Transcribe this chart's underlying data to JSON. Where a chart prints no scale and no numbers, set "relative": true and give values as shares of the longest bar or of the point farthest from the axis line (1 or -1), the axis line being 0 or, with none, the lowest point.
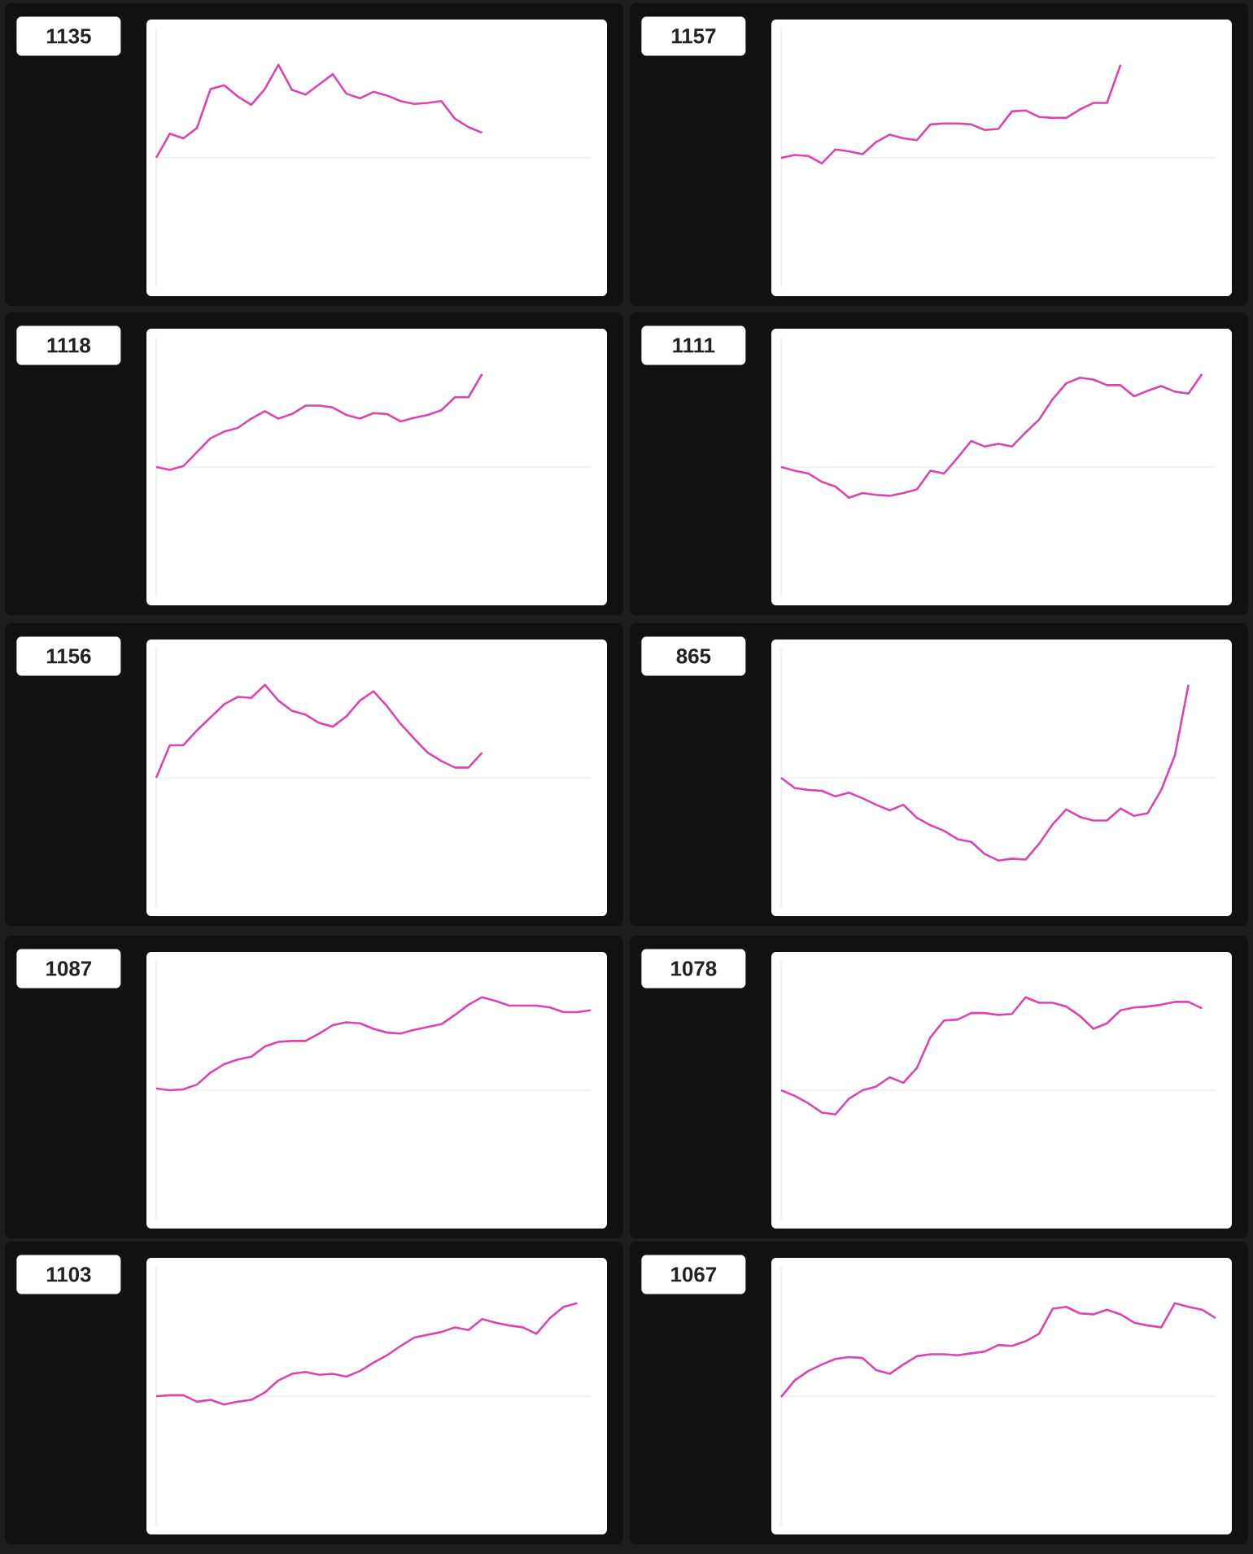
{
  "chart_data": [
    {
      "type": "line",
      "title": "1135",
      "relative": true,
      "color": "#d946b0",
      "categories": [
        null,
        null,
        null,
        null,
        null,
        null,
        null,
        null,
        null,
        null,
        null,
        null,
        null,
        null,
        null,
        null,
        null,
        null,
        null,
        null,
        null,
        null,
        null,
        null,
        null,
        null,
        null,
        null,
        null,
        null,
        null,
        null,
        null
      ],
      "values": [
        0,
        0.26,
        0.21,
        0.32,
        0.74,
        0.78,
        0.66,
        0.57,
        0.74,
        1,
        0.73,
        0.68,
        0.79,
        0.9,
        0.69,
        0.64,
        0.71,
        0.67,
        0.61,
        0.58,
        0.59,
        0.61,
        0.42,
        0.33,
        0.27,
        null,
        null,
        null,
        null,
        null,
        null,
        null,
        null
      ]
    },
    {
      "type": "line",
      "title": "1157",
      "relative": true,
      "color": "#d946b0",
      "categories": [
        null,
        null,
        null,
        null,
        null,
        null,
        null,
        null,
        null,
        null,
        null,
        null,
        null,
        null,
        null,
        null,
        null,
        null,
        null,
        null,
        null,
        null,
        null,
        null,
        null,
        null,
        null,
        null,
        null,
        null,
        null,
        null,
        null
      ],
      "values": [
        0,
        0.03,
        0.02,
        -0.06,
        0.09,
        0.07,
        0.04,
        0.17,
        0.25,
        0.21,
        0.19,
        0.36,
        0.37,
        0.37,
        0.36,
        0.3,
        0.31,
        0.5,
        0.51,
        0.44,
        0.43,
        0.43,
        0.52,
        0.59,
        0.59,
        1,
        null,
        null,
        null,
        null,
        null,
        null,
        null
      ]
    },
    {
      "type": "line",
      "title": "1118",
      "relative": true,
      "color": "#d946b0",
      "categories": [
        null,
        null,
        null,
        null,
        null,
        null,
        null,
        null,
        null,
        null,
        null,
        null,
        null,
        null,
        null,
        null,
        null,
        null,
        null,
        null,
        null,
        null,
        null,
        null,
        null,
        null,
        null,
        null,
        null,
        null,
        null,
        null,
        null
      ],
      "values": [
        0,
        -0.03,
        0.01,
        0.16,
        0.31,
        0.38,
        0.42,
        0.52,
        0.6,
        0.52,
        0.57,
        0.66,
        0.66,
        0.64,
        0.56,
        0.52,
        0.58,
        0.57,
        0.49,
        0.53,
        0.56,
        0.61,
        0.75,
        0.75,
        1,
        null,
        null,
        null,
        null,
        null,
        null,
        null,
        null
      ]
    },
    {
      "type": "line",
      "title": "1111",
      "relative": true,
      "color": "#d946b0",
      "categories": [
        null,
        null,
        null,
        null,
        null,
        null,
        null,
        null,
        null,
        null,
        null,
        null,
        null,
        null,
        null,
        null,
        null,
        null,
        null,
        null,
        null,
        null,
        null,
        null,
        null,
        null,
        null,
        null,
        null,
        null,
        null,
        null,
        null
      ],
      "values": [
        0,
        -0.04,
        -0.07,
        -0.16,
        -0.21,
        -0.33,
        -0.28,
        -0.3,
        -0.31,
        -0.28,
        -0.24,
        -0.04,
        -0.07,
        0.1,
        0.28,
        0.22,
        0.25,
        0.22,
        0.37,
        0.51,
        0.73,
        0.9,
        0.96,
        0.94,
        0.88,
        0.88,
        0.76,
        0.82,
        0.87,
        0.81,
        0.79,
        1,
        null
      ]
    },
    {
      "type": "line",
      "title": "1156",
      "relative": true,
      "color": "#d946b0",
      "categories": [
        null,
        null,
        null,
        null,
        null,
        null,
        null,
        null,
        null,
        null,
        null,
        null,
        null,
        null,
        null,
        null,
        null,
        null,
        null,
        null,
        null,
        null,
        null,
        null,
        null,
        null,
        null,
        null,
        null,
        null,
        null,
        null,
        null
      ],
      "values": [
        0,
        0.35,
        0.35,
        0.51,
        0.65,
        0.79,
        0.87,
        0.86,
        1,
        0.83,
        0.72,
        0.68,
        0.59,
        0.55,
        0.66,
        0.83,
        0.93,
        0.77,
        0.58,
        0.42,
        0.27,
        0.18,
        0.11,
        0.11,
        0.27,
        null,
        null,
        null,
        null,
        null,
        null,
        null,
        null
      ]
    },
    {
      "type": "line",
      "title": "865",
      "relative": true,
      "color": "#d946b0",
      "categories": [
        null,
        null,
        null,
        null,
        null,
        null,
        null,
        null,
        null,
        null,
        null,
        null,
        null,
        null,
        null,
        null,
        null,
        null,
        null,
        null,
        null,
        null,
        null,
        null,
        null,
        null,
        null,
        null,
        null,
        null,
        null,
        null,
        null
      ],
      "values": [
        0,
        -0.11,
        -0.13,
        -0.14,
        -0.2,
        -0.16,
        -0.22,
        -0.29,
        -0.35,
        -0.29,
        -0.43,
        -0.51,
        -0.57,
        -0.66,
        -0.69,
        -0.82,
        -0.89,
        -0.87,
        -0.88,
        -0.71,
        -0.5,
        -0.34,
        -0.42,
        -0.46,
        -0.46,
        -0.33,
        -0.41,
        -0.38,
        -0.13,
        0.24,
        1,
        null,
        null
      ]
    },
    {
      "type": "line",
      "title": "1087",
      "relative": true,
      "color": "#d946b0",
      "categories": [
        null,
        null,
        null,
        null,
        null,
        null,
        null,
        null,
        null,
        null,
        null,
        null,
        null,
        null,
        null,
        null,
        null,
        null,
        null,
        null,
        null,
        null,
        null,
        null,
        null,
        null,
        null,
        null,
        null,
        null,
        null,
        null,
        null
      ],
      "values": [
        0.02,
        0,
        0.01,
        0.06,
        0.19,
        0.28,
        0.33,
        0.36,
        0.47,
        0.52,
        0.53,
        0.53,
        0.61,
        0.7,
        0.73,
        0.72,
        0.66,
        0.62,
        0.61,
        0.65,
        0.68,
        0.71,
        0.81,
        0.92,
        1,
        0.96,
        0.91,
        0.91,
        0.91,
        0.89,
        0.84,
        0.84,
        0.86
      ]
    },
    {
      "type": "line",
      "title": "1078",
      "relative": true,
      "color": "#d946b0",
      "categories": [
        null,
        null,
        null,
        null,
        null,
        null,
        null,
        null,
        null,
        null,
        null,
        null,
        null,
        null,
        null,
        null,
        null,
        null,
        null,
        null,
        null,
        null,
        null,
        null,
        null,
        null,
        null,
        null,
        null,
        null,
        null,
        null,
        null
      ],
      "values": [
        0,
        -0.06,
        -0.14,
        -0.24,
        -0.26,
        -0.09,
        0,
        0.04,
        0.14,
        0.08,
        0.24,
        0.57,
        0.75,
        0.76,
        0.83,
        0.83,
        0.81,
        0.82,
        1,
        0.94,
        0.94,
        0.9,
        0.8,
        0.66,
        0.72,
        0.86,
        0.89,
        0.9,
        0.92,
        0.95,
        0.95,
        0.88,
        null
      ]
    },
    {
      "type": "line",
      "title": "1103",
      "relative": true,
      "color": "#d946b0",
      "categories": [
        null,
        null,
        null,
        null,
        null,
        null,
        null,
        null,
        null,
        null,
        null,
        null,
        null,
        null,
        null,
        null,
        null,
        null,
        null,
        null,
        null,
        null,
        null,
        null,
        null,
        null,
        null,
        null,
        null,
        null,
        null,
        null,
        null
      ],
      "values": [
        0,
        0.01,
        0.01,
        -0.06,
        -0.04,
        -0.09,
        -0.06,
        -0.04,
        0.04,
        0.17,
        0.24,
        0.26,
        0.23,
        0.24,
        0.21,
        0.27,
        0.36,
        0.44,
        0.54,
        0.63,
        0.66,
        0.69,
        0.74,
        0.71,
        0.83,
        0.79,
        0.76,
        0.74,
        0.67,
        0.84,
        0.96,
        1,
        null
      ]
    },
    {
      "type": "line",
      "title": "1067",
      "relative": true,
      "color": "#d946b0",
      "categories": [
        null,
        null,
        null,
        null,
        null,
        null,
        null,
        null,
        null,
        null,
        null,
        null,
        null,
        null,
        null,
        null,
        null,
        null,
        null,
        null,
        null,
        null,
        null,
        null,
        null,
        null,
        null,
        null,
        null,
        null,
        null,
        null,
        null
      ],
      "values": [
        -0.01,
        0.17,
        0.27,
        0.34,
        0.4,
        0.42,
        0.41,
        0.28,
        0.24,
        0.34,
        0.43,
        0.45,
        0.45,
        0.44,
        0.46,
        0.48,
        0.55,
        0.54,
        0.59,
        0.67,
        0.94,
        0.96,
        0.89,
        0.88,
        0.93,
        0.88,
        0.79,
        0.76,
        0.74,
        1,
        0.96,
        0.93,
        0.84
      ]
    }
  ]
}
